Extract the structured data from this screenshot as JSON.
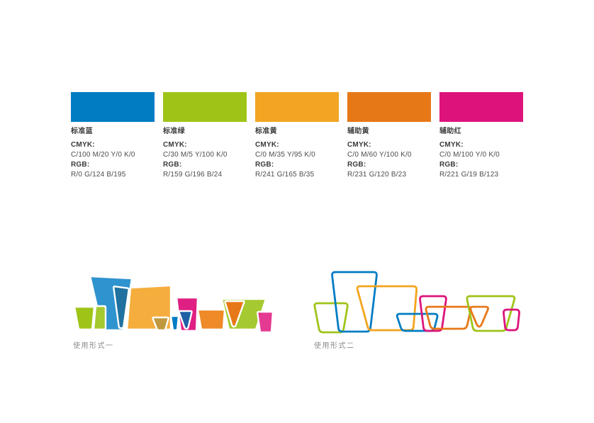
{
  "palette": {
    "cmyk_title": "CMYK:",
    "rgb_title": "RGB:",
    "swatches": [
      {
        "name": "标准蓝",
        "hex": "#007CC3",
        "cmyk": "C/100  M/20  Y/0  K/0",
        "rgb": "R/0  G/124  B/195"
      },
      {
        "name": "标准绿",
        "hex": "#9FC418",
        "cmyk": "C/30  M/5  Y/100  K/0",
        "rgb": "R/159  G/196  B/24"
      },
      {
        "name": "标准黄",
        "hex": "#F1A523",
        "cmyk": "C/0  M/35  Y/95  K/0",
        "rgb": "R/241  G/165  B/35"
      },
      {
        "name": "辅助黄",
        "hex": "#E77817",
        "cmyk": "C/0  M/60  Y/100  K/0",
        "rgb": "R/231  G/120  B/23"
      },
      {
        "name": "辅助红",
        "hex": "#DD137B",
        "cmyk": "C/0  M/100  Y/0  K/0",
        "rgb": "R/221  G/19  B/123"
      }
    ]
  },
  "usage": {
    "form1_label": "使用形式一",
    "form2_label": "使用形式二"
  },
  "colors": {
    "blue": "#007CC3",
    "green": "#9FC418",
    "yellow": "#F4A41E",
    "orange": "#E77817",
    "magenta": "#DD137B",
    "light_blue": "#2E93CE",
    "steel_blue": "#20719F",
    "navy": "#1E5FA5",
    "light_orange": "#F5AD3D",
    "tan": "#C0993F",
    "mid_orange": "#EE8A27",
    "light_green": "#A5C930",
    "pink": "#E01F83"
  }
}
